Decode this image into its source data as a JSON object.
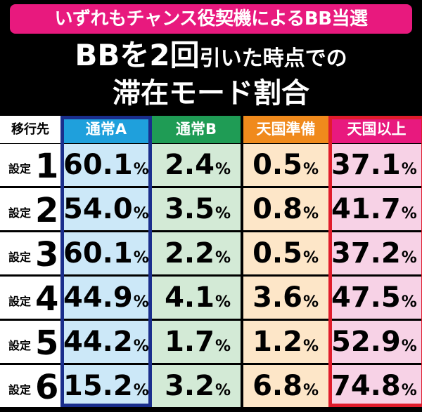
{
  "banner": "いずれもチャンス役契機によるBB当選",
  "headline": {
    "line1_a": "BBを2回",
    "line1_b": "引いた時点での",
    "line2": "滞在モード割合"
  },
  "table": {
    "corner": "移行先",
    "columns": [
      "通常A",
      "通常B",
      "天国準備",
      "天国以上"
    ],
    "column_colors": {
      "header": [
        "#1fa0dc",
        "#1f9c55",
        "#f08a1c",
        "#e8197e"
      ],
      "cell": [
        "#cce8f8",
        "#d3ead6",
        "#fde6c8",
        "#f7d2e6"
      ],
      "frame_A": "#1a2e8c",
      "frame_top": "#e01c2c"
    },
    "row_prefix": "設定",
    "percent_sign": "%",
    "rows": [
      {
        "setting": "1",
        "values": [
          "60.1",
          "2.4",
          "0.5",
          "37.1"
        ]
      },
      {
        "setting": "2",
        "values": [
          "54.0",
          "3.5",
          "0.8",
          "41.7"
        ]
      },
      {
        "setting": "3",
        "values": [
          "60.1",
          "2.2",
          "0.5",
          "37.2"
        ]
      },
      {
        "setting": "4",
        "values": [
          "44.9",
          "4.1",
          "3.6",
          "47.5"
        ]
      },
      {
        "setting": "5",
        "values": [
          "44.2",
          "1.7",
          "1.2",
          "52.9"
        ]
      },
      {
        "setting": "6",
        "values": [
          "15.2",
          "3.2",
          "6.8",
          "74.8"
        ]
      }
    ]
  }
}
